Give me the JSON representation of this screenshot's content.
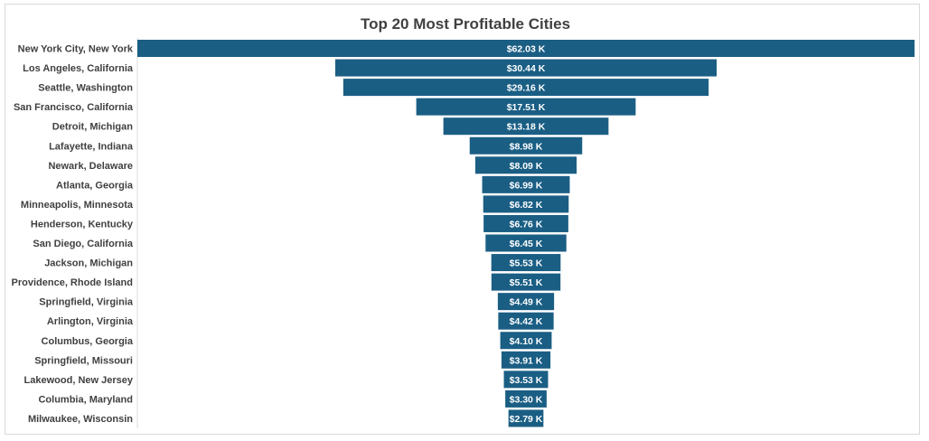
{
  "chart_data": {
    "type": "bar",
    "style": "funnel",
    "orientation": "horizontal",
    "title": "Top 20 Most Profitable Cities",
    "categories": [
      "New York City, New York",
      "Los Angeles, California",
      "Seattle, Washington",
      "San Francisco, California",
      "Detroit, Michigan",
      "Lafayette, Indiana",
      "Newark, Delaware",
      "Atlanta, Georgia",
      "Minneapolis, Minnesota",
      "Henderson, Kentucky",
      "San Diego, California",
      "Jackson, Michigan",
      "Providence, Rhode Island",
      "Springfield, Virginia",
      "Arlington, Virginia",
      "Columbus, Georgia",
      "Springfield, Missouri",
      "Lakewood, New Jersey",
      "Columbia, Maryland",
      "Milwaukee, Wisconsin"
    ],
    "values": [
      62.03,
      30.44,
      29.16,
      17.51,
      13.18,
      8.98,
      8.09,
      6.99,
      6.82,
      6.76,
      6.45,
      5.53,
      5.51,
      4.49,
      4.42,
      4.1,
      3.91,
      3.53,
      3.3,
      2.79
    ],
    "data_labels": [
      "$62.03 K",
      "$30.44 K",
      "$29.16 K",
      "$17.51 K",
      "$13.18 K",
      "$8.98 K",
      "$8.09 K",
      "$6.99 K",
      "$6.82 K",
      "$6.76 K",
      "$6.45 K",
      "$5.53 K",
      "$5.51 K",
      "$4.49 K",
      "$4.42 K",
      "$4.10 K",
      "$3.91 K",
      "$3.53 K",
      "$3.30 K",
      "$2.79 K"
    ],
    "value_unit": "$K",
    "bar_color": "#1a5e84",
    "grid": false,
    "legend": "none"
  }
}
